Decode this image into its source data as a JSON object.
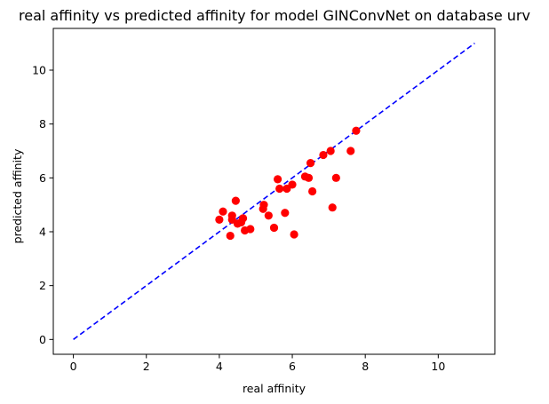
{
  "chart_data": {
    "type": "scatter",
    "title": "real affinity vs predicted affinity for model GINConvNet on database urv",
    "xlabel": "real affinity",
    "ylabel": "predicted affinity",
    "xlim": [
      -0.55,
      11.55
    ],
    "ylim": [
      -0.55,
      11.55
    ],
    "xticks": [
      0,
      2,
      4,
      6,
      8,
      10
    ],
    "yticks": [
      0,
      2,
      4,
      6,
      8,
      10
    ],
    "grid": false,
    "reference_line": {
      "x": [
        0,
        11
      ],
      "y": [
        0,
        11
      ],
      "style": "dashed",
      "color": "#0000ff"
    },
    "series": [
      {
        "color": "#ff0000",
        "points": [
          [
            4.0,
            4.45
          ],
          [
            4.1,
            4.75
          ],
          [
            4.3,
            3.85
          ],
          [
            4.35,
            4.45
          ],
          [
            4.35,
            4.6
          ],
          [
            4.45,
            5.15
          ],
          [
            4.5,
            4.3
          ],
          [
            4.6,
            4.35
          ],
          [
            4.65,
            4.5
          ],
          [
            4.7,
            4.05
          ],
          [
            4.85,
            4.1
          ],
          [
            5.2,
            4.85
          ],
          [
            5.22,
            5.0
          ],
          [
            5.35,
            4.6
          ],
          [
            5.5,
            4.15
          ],
          [
            5.6,
            5.95
          ],
          [
            5.65,
            5.6
          ],
          [
            5.8,
            4.7
          ],
          [
            5.85,
            5.6
          ],
          [
            6.0,
            5.75
          ],
          [
            6.05,
            3.9
          ],
          [
            6.35,
            6.05
          ],
          [
            6.45,
            6.0
          ],
          [
            6.5,
            6.55
          ],
          [
            6.55,
            5.5
          ],
          [
            6.85,
            6.85
          ],
          [
            7.05,
            7.0
          ],
          [
            7.1,
            4.9
          ],
          [
            7.2,
            6.0
          ],
          [
            7.6,
            7.0
          ],
          [
            7.75,
            7.75
          ]
        ]
      }
    ]
  }
}
